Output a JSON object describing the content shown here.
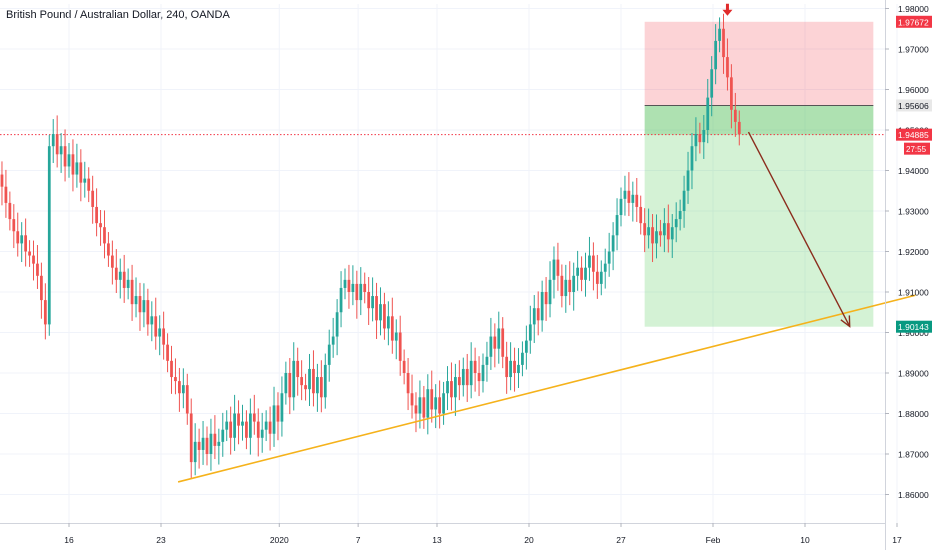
{
  "chart_data": {
    "type": "candlestick",
    "title": "British Pound / Australian Dollar, 240, OANDA",
    "y_axis": {
      "range": [
        1.857,
        1.981
      ],
      "ticks": [
        "1.98000",
        "1.97000",
        "1.96000",
        "1.95000",
        "1.94000",
        "1.93000",
        "1.92000",
        "1.91000",
        "1.90000",
        "1.89000",
        "1.88000",
        "1.87000",
        "1.86000"
      ]
    },
    "x_axis": {
      "ticks": [
        {
          "label": "16",
          "day": 16
        },
        {
          "label": "23",
          "day": 23
        },
        {
          "label": "2020",
          "day": 32
        },
        {
          "label": "7",
          "day": 38
        },
        {
          "label": "13",
          "day": 44
        },
        {
          "label": "20",
          "day": 51
        },
        {
          "label": "27",
          "day": 58
        },
        {
          "label": "Feb",
          "day": 65
        },
        {
          "label": "10",
          "day": 72
        },
        {
          "label": "17",
          "day": 79
        }
      ]
    },
    "price_labels": [
      {
        "value": 1.97672,
        "text": "1.97672",
        "color": "#f23645"
      },
      {
        "value": 1.95606,
        "text": "1.95606",
        "color": "#e8e8e8"
      },
      {
        "value": 1.94885,
        "text": "1.94885",
        "color": "#f23645"
      },
      {
        "value": 1.90143,
        "text": "1.90143",
        "color": "#089981"
      }
    ],
    "countdown": "27:55",
    "current_price": 1.94885,
    "position": {
      "side": "short",
      "entry": 1.95606,
      "stop": 1.97672,
      "target": 1.90143,
      "start_day": 59.8,
      "end_day": 77.2
    },
    "trendline": {
      "start": {
        "day": 24.3,
        "price": 1.8631
      },
      "end": {
        "day": 80.4,
        "price": 1.9092
      },
      "color": "#f5b21b"
    },
    "projection_arrow": {
      "start": {
        "day": 67.7,
        "price": 1.9495
      },
      "end": {
        "day": 75.4,
        "price": 1.9015
      },
      "color": "#8b2d1d"
    },
    "signal_arrow": {
      "day": 66.1,
      "price": 1.9792,
      "color": "#e02b2b"
    },
    "series": [
      {
        "name": "",
        "x": [
          10.0,
          10.3,
          10.6,
          10.9,
          11.2,
          11.5,
          11.8,
          12.1,
          12.4,
          12.7,
          13.0,
          13.3,
          13.6,
          13.9,
          14.2,
          14.5,
          14.8,
          15.1,
          15.4,
          15.7,
          16.0,
          16.3,
          16.6,
          16.9,
          17.2,
          17.5,
          17.8,
          18.1,
          18.4,
          18.7,
          19.0,
          19.3,
          19.6,
          19.9,
          20.2,
          20.5,
          20.8,
          21.1,
          21.4,
          21.7,
          22.0,
          22.3,
          22.6,
          22.9,
          23.2,
          23.5,
          23.8,
          24.1,
          24.4,
          24.7,
          25.0,
          25.3,
          25.6,
          25.9,
          26.2,
          26.5,
          26.8,
          27.1,
          27.4,
          27.7,
          28.0,
          28.3,
          28.6,
          28.9,
          29.2,
          29.5,
          29.8,
          30.1,
          30.4,
          30.7,
          31.0,
          31.3,
          31.6,
          31.9,
          32.2,
          32.5,
          32.8,
          33.1,
          33.4,
          33.7,
          34.0,
          34.3,
          34.6,
          34.9,
          35.2,
          35.5,
          35.8,
          36.1,
          36.4,
          36.7,
          37.0,
          37.3,
          37.6,
          37.9,
          38.2,
          38.5,
          38.8,
          39.1,
          39.4,
          39.7,
          40.0,
          40.3,
          40.6,
          40.9,
          41.2,
          41.5,
          41.8,
          42.1,
          42.4,
          42.7,
          43.0,
          43.3,
          43.6,
          43.9,
          44.2,
          44.5,
          44.8,
          45.1,
          45.4,
          45.7,
          46.0,
          46.3,
          46.6,
          46.9,
          47.2,
          47.5,
          47.8,
          48.1,
          48.4,
          48.7,
          49.0,
          49.3,
          49.6,
          49.9,
          50.2,
          50.5,
          50.8,
          51.1,
          51.4,
          51.7,
          52.0,
          52.3,
          52.6,
          52.9,
          53.2,
          53.5,
          53.8,
          54.1,
          54.4,
          54.7,
          55.0,
          55.3,
          55.6,
          55.9,
          56.2,
          56.5,
          56.8,
          57.1,
          57.4,
          57.7,
          58.0,
          58.3,
          58.6,
          58.9,
          59.2,
          59.5,
          59.8,
          60.1,
          60.4,
          60.7,
          61.0,
          61.3,
          61.6,
          61.9,
          62.2,
          62.5,
          62.8,
          63.1,
          63.4,
          63.7,
          64.0,
          64.3,
          64.6,
          64.9,
          65.2,
          65.5,
          65.8,
          66.1,
          66.4,
          66.7,
          67.0
        ],
        "y": [
          1.935,
          1.937,
          1.939,
          1.936,
          1.932,
          1.928,
          1.925,
          1.922,
          1.924,
          1.92,
          1.919,
          1.917,
          1.914,
          1.908,
          1.902,
          1.946,
          1.949,
          1.944,
          1.946,
          1.941,
          1.944,
          1.939,
          1.942,
          1.937,
          1.938,
          1.935,
          1.931,
          1.927,
          1.926,
          1.922,
          1.919,
          1.916,
          1.913,
          1.915,
          1.911,
          1.913,
          1.907,
          1.909,
          1.905,
          1.908,
          1.902,
          1.904,
          1.899,
          1.901,
          1.897,
          1.893,
          1.889,
          1.888,
          1.885,
          1.887,
          1.88,
          1.868,
          1.873,
          1.871,
          1.874,
          1.87,
          1.875,
          1.872,
          1.873,
          1.876,
          1.878,
          1.874,
          1.88,
          1.877,
          1.878,
          1.874,
          1.88,
          1.878,
          1.874,
          1.876,
          1.878,
          1.875,
          1.882,
          1.878,
          1.885,
          1.89,
          1.884,
          1.893,
          1.889,
          1.887,
          1.886,
          1.891,
          1.885,
          1.889,
          1.884,
          1.892,
          1.897,
          1.899,
          1.905,
          1.911,
          1.913,
          1.91,
          1.912,
          1.908,
          1.912,
          1.91,
          1.906,
          1.909,
          1.903,
          1.907,
          1.901,
          1.904,
          1.898,
          1.9,
          1.893,
          1.89,
          1.885,
          1.882,
          1.88,
          1.884,
          1.879,
          1.886,
          1.881,
          1.884,
          1.88,
          1.885,
          1.888,
          1.884,
          1.889,
          1.887,
          1.891,
          1.887,
          1.893,
          1.89,
          1.888,
          1.892,
          1.894,
          1.899,
          1.896,
          1.901,
          1.894,
          1.889,
          1.893,
          1.89,
          1.892,
          1.895,
          1.898,
          1.902,
          1.906,
          1.903,
          1.91,
          1.907,
          1.913,
          1.918,
          1.914,
          1.909,
          1.913,
          1.91,
          1.914,
          1.916,
          1.913,
          1.916,
          1.919,
          1.915,
          1.912,
          1.915,
          1.917,
          1.92,
          1.924,
          1.929,
          1.933,
          1.935,
          1.932,
          1.934,
          1.931,
          1.927,
          1.924,
          1.926,
          1.922,
          1.925,
          1.924,
          1.927,
          1.923,
          1.926,
          1.928,
          1.93,
          1.935,
          1.94,
          1.946,
          1.949,
          1.947,
          1.95,
          1.958,
          1.965,
          1.972,
          1.975,
          1.968,
          1.963,
          1.955,
          1.952,
          1.949
        ]
      }
    ]
  }
}
